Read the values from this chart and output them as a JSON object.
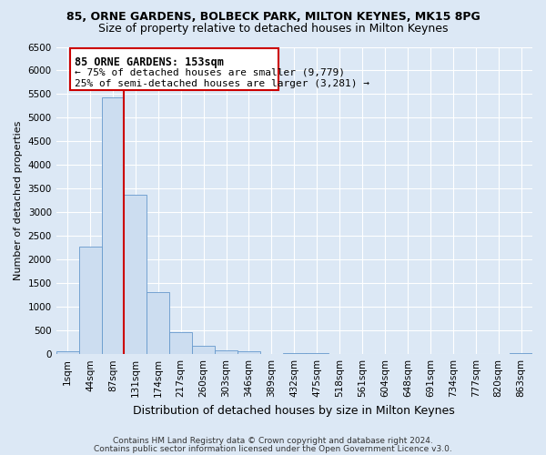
{
  "title": "85, ORNE GARDENS, BOLBECK PARK, MILTON KEYNES, MK15 8PG",
  "subtitle": "Size of property relative to detached houses in Milton Keynes",
  "xlabel": "Distribution of detached houses by size in Milton Keynes",
  "ylabel": "Number of detached properties",
  "bar_labels": [
    "1sqm",
    "44sqm",
    "87sqm",
    "131sqm",
    "174sqm",
    "217sqm",
    "260sqm",
    "303sqm",
    "346sqm",
    "389sqm",
    "432sqm",
    "475sqm",
    "518sqm",
    "561sqm",
    "604sqm",
    "648sqm",
    "691sqm",
    "734sqm",
    "777sqm",
    "820sqm",
    "863sqm"
  ],
  "bar_values": [
    60,
    2280,
    5430,
    3380,
    1320,
    475,
    185,
    90,
    55,
    0,
    30,
    30,
    0,
    0,
    0,
    0,
    0,
    0,
    0,
    0,
    30
  ],
  "bar_color": "#ccddf0",
  "bar_edge_color": "#6699cc",
  "vline_x_idx": 2.5,
  "vline_color": "#cc0000",
  "ylim": [
    0,
    6500
  ],
  "yticks": [
    0,
    500,
    1000,
    1500,
    2000,
    2500,
    3000,
    3500,
    4000,
    4500,
    5000,
    5500,
    6000,
    6500
  ],
  "annotation_title": "85 ORNE GARDENS: 153sqm",
  "annotation_line1": "← 75% of detached houses are smaller (9,779)",
  "annotation_line2": "25% of semi-detached houses are larger (3,281) →",
  "annotation_box_edgecolor": "#cc0000",
  "annotation_box_facecolor": "white",
  "footer1": "Contains HM Land Registry data © Crown copyright and database right 2024.",
  "footer2": "Contains public sector information licensed under the Open Government Licence v3.0.",
  "background_color": "#dce8f5",
  "plot_background": "#dce8f5",
  "grid_color": "white",
  "title_fontsize": 9,
  "subtitle_fontsize": 9,
  "ylabel_fontsize": 8,
  "xlabel_fontsize": 9,
  "tick_fontsize": 7.5
}
